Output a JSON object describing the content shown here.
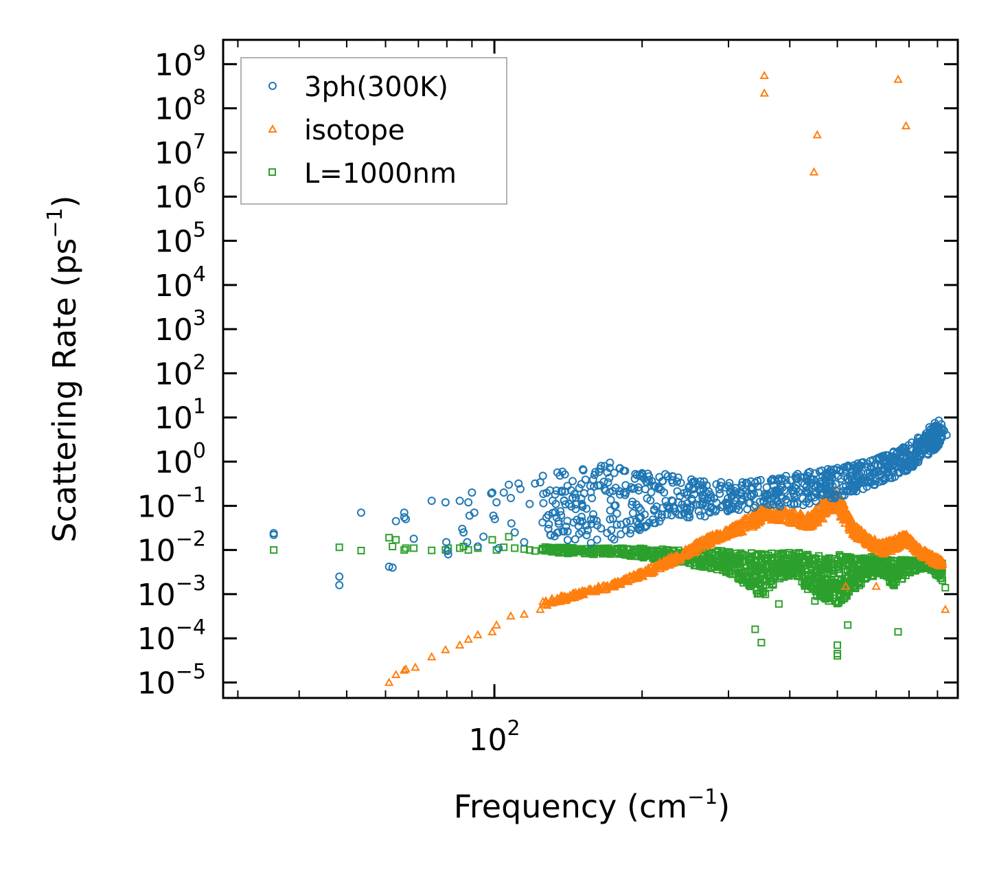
{
  "chart_data": {
    "type": "scatter",
    "title": "",
    "xlabel": "Frequency (cm",
    "xlabel_exp": "−1",
    "xlabel_close": ")",
    "ylabel": "Scattering Rate (ps",
    "ylabel_exp": "−1",
    "ylabel_close": ")",
    "xscale": "log",
    "yscale": "log",
    "xlim": [
      28,
      880
    ],
    "ylim_exp": [
      -5.35,
      9.55
    ],
    "x_ticks": [
      {
        "base": "10",
        "exp": "2",
        "value": 100
      }
    ],
    "y_ticks": [
      {
        "base": "10",
        "exp": "9",
        "value": 9
      },
      {
        "base": "10",
        "exp": "8",
        "value": 8
      },
      {
        "base": "10",
        "exp": "7",
        "value": 7
      },
      {
        "base": "10",
        "exp": "6",
        "value": 6
      },
      {
        "base": "10",
        "exp": "5",
        "value": 5
      },
      {
        "base": "10",
        "exp": "4",
        "value": 4
      },
      {
        "base": "10",
        "exp": "3",
        "value": 3
      },
      {
        "base": "10",
        "exp": "2",
        "value": 2
      },
      {
        "base": "10",
        "exp": "1",
        "value": 1
      },
      {
        "base": "10",
        "exp": "0",
        "value": 0
      },
      {
        "base": "10",
        "exp": "−1",
        "value": -1
      },
      {
        "base": "10",
        "exp": "−2",
        "value": -2
      },
      {
        "base": "10",
        "exp": "−3",
        "value": -3
      },
      {
        "base": "10",
        "exp": "−4",
        "value": -4
      },
      {
        "base": "10",
        "exp": "−5",
        "value": -5
      }
    ],
    "legend_position": "top-left",
    "series": [
      {
        "name": "3ph(300K)",
        "marker": "circle",
        "color": "#1f77b4",
        "points": [
          [
            35.5,
            0.022
          ],
          [
            35.5,
            0.024
          ],
          [
            48.3,
            0.0025
          ],
          [
            48.3,
            0.0016
          ],
          [
            53.5,
            0.07
          ],
          [
            61.0,
            0.0042
          ],
          [
            62.0,
            0.004
          ],
          [
            63.0,
            0.045
          ],
          [
            65.5,
            0.055
          ],
          [
            65.5,
            0.07
          ],
          [
            66.0,
            0.05
          ],
          [
            68.5,
            0.018
          ],
          [
            74.5,
            0.13
          ],
          [
            79.5,
            0.12
          ],
          [
            79.8,
            0.015
          ],
          [
            80.2,
            0.0095
          ],
          [
            80.5,
            0.008
          ],
          [
            85.0,
            0.13
          ],
          [
            86.0,
            0.03
          ],
          [
            86.5,
            0.025
          ],
          [
            88.0,
            0.015
          ],
          [
            88.5,
            0.12
          ],
          [
            89.0,
            0.06
          ],
          [
            90.0,
            0.2
          ],
          [
            91.0,
            0.07
          ],
          [
            92.5,
            0.012
          ],
          [
            95.0,
            0.02
          ],
          [
            98.5,
            0.19
          ],
          [
            99.0,
            0.2
          ],
          [
            99.5,
            0.06
          ],
          [
            100.2,
            0.05
          ],
          [
            101.0,
            0.12
          ],
          [
            102.0,
            0.011
          ],
          [
            104.5,
            0.2
          ],
          [
            107.0,
            0.3
          ],
          [
            108.0,
            0.15
          ],
          [
            108.3,
            0.04
          ],
          [
            110.0,
            0.025
          ],
          [
            112.0,
            0.32
          ],
          [
            113.0,
            0.24
          ],
          [
            115.0,
            0.015
          ],
          [
            118.0,
            0.11
          ],
          [
            121.0,
            0.32
          ],
          [
            124.0,
            0.34
          ],
          [
            160.0,
            0.5
          ],
          [
            165.0,
            0.8
          ],
          [
            172.0,
            0.95
          ],
          [
            180.0,
            0.7
          ],
          [
            200.0,
            0.55
          ],
          [
            230.0,
            0.38
          ],
          [
            260.0,
            0.3
          ],
          [
            300.0,
            0.28
          ],
          [
            340.0,
            0.33
          ],
          [
            380.0,
            0.38
          ],
          [
            420.0,
            0.45
          ],
          [
            460.0,
            0.6
          ],
          [
            500.0,
            0.72
          ],
          [
            560.0,
            0.95
          ],
          [
            620.0,
            1.3
          ],
          [
            680.0,
            2.0
          ],
          [
            730.0,
            3.5
          ],
          [
            770.0,
            6.0
          ],
          [
            790.0,
            7.5
          ],
          [
            805.0,
            8.5
          ],
          [
            815.0,
            7.0
          ],
          [
            825.0,
            5.0
          ],
          [
            835.0,
            4.0
          ]
        ],
        "dense_band": [
          [
            125,
            0.02,
            0.5
          ],
          [
            150,
            0.015,
            0.7
          ],
          [
            180,
            0.012,
            0.9
          ],
          [
            210,
            0.04,
            0.6
          ],
          [
            250,
            0.05,
            0.4
          ],
          [
            300,
            0.07,
            0.35
          ],
          [
            360,
            0.09,
            0.4
          ],
          [
            420,
            0.1,
            0.55
          ],
          [
            480,
            0.13,
            0.7
          ],
          [
            540,
            0.2,
            0.9
          ],
          [
            600,
            0.3,
            1.2
          ],
          [
            660,
            0.45,
            1.8
          ],
          [
            720,
            0.8,
            3.0
          ],
          [
            780,
            1.5,
            6.0
          ],
          [
            820,
            3.0,
            8.0
          ]
        ]
      },
      {
        "name": "isotope",
        "marker": "triangle",
        "color": "#ff7f0e",
        "points": [
          [
            355.0,
            550000000.0
          ],
          [
            355.0,
            220000000.0
          ],
          [
            665.0,
            450000000.0
          ],
          [
            690.0,
            40000000.0
          ],
          [
            455.0,
            25000000.0
          ],
          [
            448.0,
            3600000.0
          ],
          [
            61.0,
            1e-05
          ],
          [
            63.0,
            1.5e-05
          ],
          [
            65.5,
            1.9e-05
          ],
          [
            66.0,
            2e-05
          ],
          [
            69.0,
            2.2e-05
          ],
          [
            74.5,
            3.8e-05
          ],
          [
            79.5,
            5.5e-05
          ],
          [
            85.0,
            7e-05
          ],
          [
            88.5,
            9.5e-05
          ],
          [
            92.5,
            0.00012
          ],
          [
            99.0,
            0.00014
          ],
          [
            101.0,
            0.0002
          ],
          [
            108.0,
            0.00032
          ],
          [
            115.0,
            0.00035
          ],
          [
            124.0,
            0.00045
          ],
          [
            830.0,
            0.00045
          ],
          [
            600.0,
            0.0015
          ],
          [
            520.0,
            0.0015
          ]
        ],
        "dense_band": [
          [
            125,
            0.0005,
            0.0007
          ],
          [
            150,
            0.0009,
            0.0012
          ],
          [
            180,
            0.0015,
            0.002
          ],
          [
            210,
            0.003,
            0.0045
          ],
          [
            240,
            0.006,
            0.009
          ],
          [
            270,
            0.012,
            0.02
          ],
          [
            300,
            0.02,
            0.03
          ],
          [
            335,
            0.03,
            0.07
          ],
          [
            355,
            0.05,
            0.1
          ],
          [
            400,
            0.04,
            0.08
          ],
          [
            440,
            0.03,
            0.06
          ],
          [
            470,
            0.05,
            0.15
          ],
          [
            490,
            0.1,
            0.25
          ],
          [
            510,
            0.05,
            0.15
          ],
          [
            540,
            0.02,
            0.04
          ],
          [
            580,
            0.012,
            0.02
          ],
          [
            620,
            0.008,
            0.015
          ],
          [
            660,
            0.01,
            0.02
          ],
          [
            690,
            0.015,
            0.025
          ],
          [
            730,
            0.008,
            0.012
          ],
          [
            780,
            0.005,
            0.008
          ],
          [
            820,
            0.004,
            0.006
          ]
        ]
      },
      {
        "name": "L=1000nm",
        "marker": "square",
        "color": "#2ca02c",
        "points": [
          [
            35.5,
            0.01
          ],
          [
            48.3,
            0.0115
          ],
          [
            53.5,
            0.0097
          ],
          [
            61.0,
            0.019
          ],
          [
            62.0,
            0.012
          ],
          [
            63.0,
            0.017
          ],
          [
            65.5,
            0.01
          ],
          [
            66.0,
            0.011
          ],
          [
            68.5,
            0.011
          ],
          [
            74.5,
            0.0098
          ],
          [
            79.5,
            0.01
          ],
          [
            80.5,
            0.011
          ],
          [
            85.0,
            0.011
          ],
          [
            86.5,
            0.012
          ],
          [
            88.5,
            0.01
          ],
          [
            92.5,
            0.011
          ],
          [
            99.0,
            0.017
          ],
          [
            101.0,
            0.01
          ],
          [
            104.5,
            0.0115
          ],
          [
            107.0,
            0.02
          ],
          [
            110.0,
            0.011
          ],
          [
            115.0,
            0.0105
          ],
          [
            118.0,
            0.01
          ],
          [
            121.0,
            0.0095
          ],
          [
            350.0,
            8e-05
          ],
          [
            500.0,
            7e-05
          ],
          [
            500.0,
            4.5e-05
          ],
          [
            500.0,
            4e-05
          ],
          [
            340.0,
            0.00016
          ],
          [
            525.0,
            0.0002
          ],
          [
            665.0,
            0.00014
          ],
          [
            380.0,
            0.0006
          ],
          [
            450.0,
            0.0007
          ],
          [
            480.0,
            0.0007
          ],
          [
            830.0,
            0.0014
          ]
        ],
        "dense_band": [
          [
            125,
            0.009,
            0.012
          ],
          [
            150,
            0.008,
            0.011
          ],
          [
            180,
            0.008,
            0.011
          ],
          [
            210,
            0.006,
            0.011
          ],
          [
            240,
            0.005,
            0.01
          ],
          [
            270,
            0.004,
            0.01
          ],
          [
            300,
            0.003,
            0.01
          ],
          [
            330,
            0.0015,
            0.009
          ],
          [
            350,
            0.0008,
            0.009
          ],
          [
            380,
            0.002,
            0.009
          ],
          [
            410,
            0.003,
            0.009
          ],
          [
            440,
            0.001,
            0.008
          ],
          [
            470,
            0.0008,
            0.008
          ],
          [
            500,
            0.0006,
            0.008
          ],
          [
            530,
            0.001,
            0.007
          ],
          [
            570,
            0.002,
            0.007
          ],
          [
            610,
            0.003,
            0.007
          ],
          [
            650,
            0.0015,
            0.006
          ],
          [
            700,
            0.003,
            0.006
          ],
          [
            760,
            0.004,
            0.006
          ],
          [
            820,
            0.002,
            0.005
          ]
        ]
      }
    ]
  }
}
